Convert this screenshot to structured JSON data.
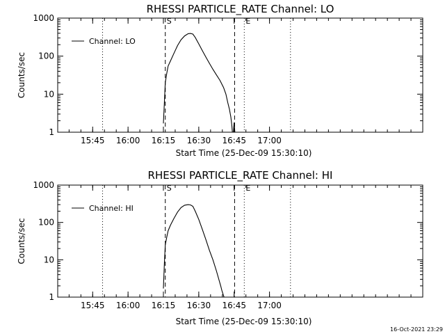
{
  "footer": {
    "timestamp": "16-Oct-2021 23:29"
  },
  "chart_data": [
    {
      "type": "line",
      "title": "RHESSI PARTICLE_RATE Channel: LO",
      "xlabel": "Start Time (25-Dec-09 15:30:10)",
      "ylabel": "Counts/sec",
      "yscale": "log",
      "ylim": [
        1,
        1000
      ],
      "xlim_min_of_day": [
        930.17,
        1085
      ],
      "x_ticks": [
        945,
        960,
        975,
        990,
        1005,
        1020
      ],
      "x_tick_labels": [
        "15:45",
        "16:00",
        "16:15",
        "16:30",
        "16:45",
        "17:00"
      ],
      "y_ticks": [
        1,
        10,
        100,
        1000
      ],
      "y_tick_labels": [
        "1",
        "10",
        "100",
        "1000"
      ],
      "grid": false,
      "legend_position": "top-left",
      "series": [
        {
          "name": "Channel: LO",
          "x": [
            975.0,
            975.4,
            975.8,
            976.4,
            977.0,
            978.0,
            979.5,
            981.0,
            982.5,
            984.0,
            985.5,
            986.5,
            987.5,
            988.5,
            990.0,
            991.5,
            993.0,
            994.5,
            996.0,
            997.5,
            999.0,
            1000.5,
            1001.5,
            1002.3,
            1003.0,
            1003.6,
            1004.0,
            1004.25
          ],
          "y": [
            1.7,
            6,
            20,
            35,
            55,
            75,
            120,
            190,
            270,
            340,
            390,
            395,
            380,
            310,
            210,
            140,
            95,
            65,
            45,
            32,
            23,
            15,
            10,
            6,
            4,
            2.5,
            1.6,
            1.0
          ]
        }
      ],
      "extra_segment": {
        "x": [
          1004.7,
          1005.0,
          1005.3
        ],
        "y": [
          1.0,
          1.8,
          1.0
        ]
      },
      "markers": [
        {
          "label": "S",
          "x": 975.8,
          "style": "dashed"
        },
        {
          "x": 1005.2,
          "style": "dashed"
        },
        {
          "label": "E",
          "x": 1009.3,
          "style": "dotted"
        },
        {
          "x": 949.2,
          "style": "dotted"
        },
        {
          "x": 1028.9,
          "style": "dotted"
        }
      ]
    },
    {
      "type": "line",
      "title": "RHESSI PARTICLE_RATE Channel: HI",
      "xlabel": "Start Time (25-Dec-09 15:30:10)",
      "ylabel": "Counts/sec",
      "yscale": "log",
      "ylim": [
        1,
        1000
      ],
      "xlim_min_of_day": [
        930.17,
        1085
      ],
      "x_ticks": [
        945,
        960,
        975,
        990,
        1005,
        1020
      ],
      "x_tick_labels": [
        "15:45",
        "16:00",
        "16:15",
        "16:30",
        "16:45",
        "17:00"
      ],
      "y_ticks": [
        1,
        10,
        100,
        1000
      ],
      "y_tick_labels": [
        "1",
        "10",
        "100",
        "1000"
      ],
      "grid": false,
      "legend_position": "top-left",
      "series": [
        {
          "name": "Channel: HI",
          "x": [
            975.0,
            975.4,
            975.8,
            976.4,
            977.0,
            978.0,
            979.5,
            981.0,
            982.5,
            984.0,
            985.5,
            986.5,
            987.5,
            988.5,
            990.0,
            991.5,
            993.0,
            994.5,
            996.0,
            997.5,
            998.5,
            999.3,
            999.8,
            1000.3,
            1000.7
          ],
          "y": [
            1.7,
            8,
            25,
            40,
            60,
            85,
            130,
            190,
            250,
            290,
            300,
            295,
            270,
            200,
            120,
            65,
            35,
            18,
            10,
            5,
            3,
            2,
            1.5,
            1.2,
            1.0
          ]
        }
      ],
      "markers": [
        {
          "label": "S",
          "x": 975.8,
          "style": "dashed"
        },
        {
          "x": 1005.2,
          "style": "dashed"
        },
        {
          "label": "E",
          "x": 1009.3,
          "style": "dotted"
        },
        {
          "x": 949.2,
          "style": "dotted"
        },
        {
          "x": 1028.9,
          "style": "dotted"
        }
      ]
    }
  ]
}
